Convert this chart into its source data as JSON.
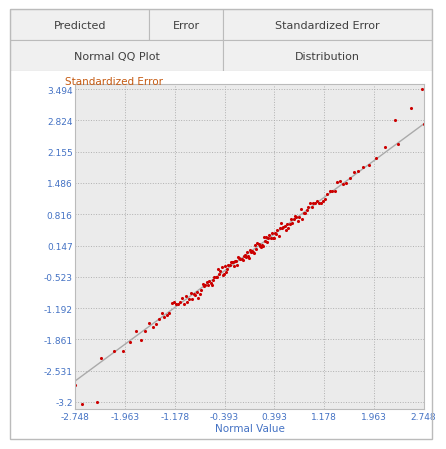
{
  "title_row1": [
    "Predicted",
    "Error",
    "Standardized Error"
  ],
  "title_row2": [
    "Normal QQ Plot",
    "Distribution"
  ],
  "ylabel": "Standardized Error",
  "xlabel": "Normal Value",
  "xtick_labels": [
    "-2.748",
    "-1.963",
    "-1.178",
    "-0.393",
    "0.393",
    "1.178",
    "1.963",
    "2.748"
  ],
  "xticks": [
    -2.748,
    -1.963,
    -1.178,
    -0.393,
    0.393,
    1.178,
    1.963,
    2.748
  ],
  "ytick_labels": [
    "3.494",
    "2.824",
    "2.155",
    "1.486",
    "0.816",
    "0.147",
    "-0.523",
    "-1.192",
    "-1.861",
    "-2.531",
    "-3.2"
  ],
  "yticks": [
    3.494,
    2.824,
    2.155,
    1.486,
    0.816,
    0.147,
    -0.523,
    -1.192,
    -1.861,
    -2.531,
    -3.2
  ],
  "xlim": [
    -2.748,
    2.748
  ],
  "ylim": [
    -3.35,
    3.6
  ],
  "dot_color": "#CC0000",
  "line_color": "#AAAAAA",
  "grid_color": "#AAAAAA",
  "plot_bg_color": "#EBEBEB",
  "header_bg_light": "#F0F0F0",
  "header_bg_dark": "#E0E0E0",
  "tick_color": "#4472C4",
  "ylabel_color": "#C55A11",
  "xlabel_color": "#4472C4",
  "header_text_color": "#404040",
  "col_splits": [
    0.0,
    0.33,
    0.505,
    1.0
  ],
  "row2_split": 0.505
}
